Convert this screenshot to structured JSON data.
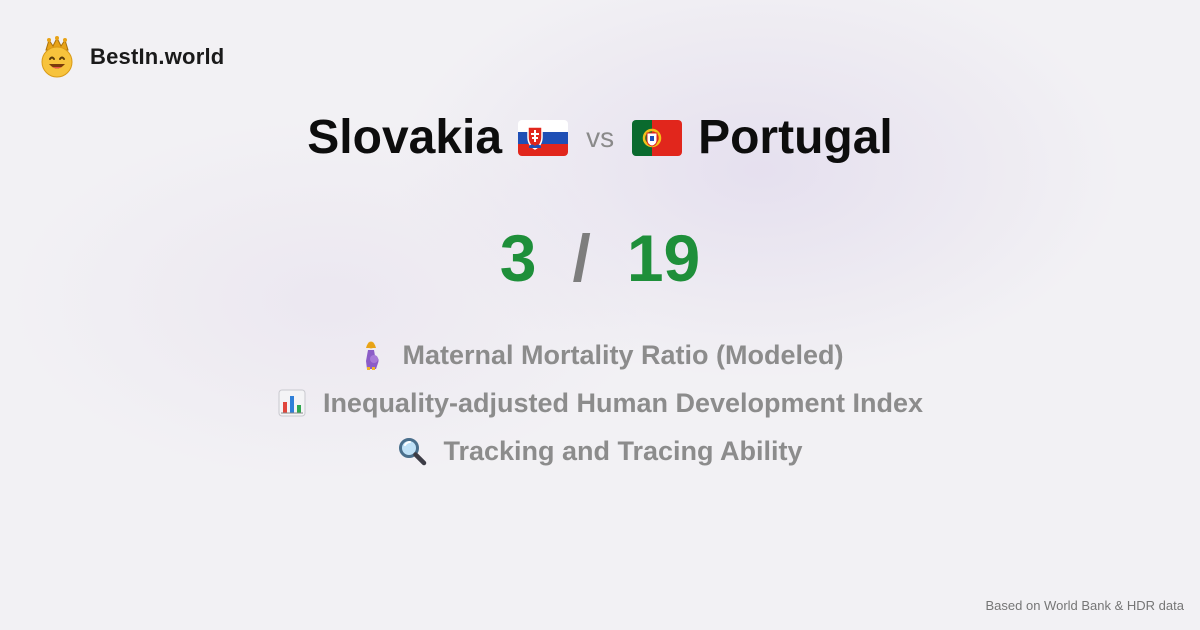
{
  "brand": {
    "name": "BestIn.world",
    "logo_icon": "crowned-smiley-icon"
  },
  "comparison": {
    "left_country": "Slovakia",
    "left_flag_icon": "slovakia-flag-icon",
    "vs_label": "vs",
    "right_country": "Portugal",
    "right_flag_icon": "portugal-flag-icon"
  },
  "scores": {
    "left": "3",
    "separator": "/",
    "right": "19",
    "color": "#1e8f3a"
  },
  "metrics": [
    {
      "icon": "pregnant-woman-icon",
      "label": "Maternal Mortality Ratio (Modeled)"
    },
    {
      "icon": "bar-chart-icon",
      "label": "Inequality-adjusted Human Development Index"
    },
    {
      "icon": "magnifying-glass-icon",
      "label": "Tracking and Tracing Ability"
    }
  ],
  "footer": {
    "source": "Based on World Bank & HDR data"
  }
}
